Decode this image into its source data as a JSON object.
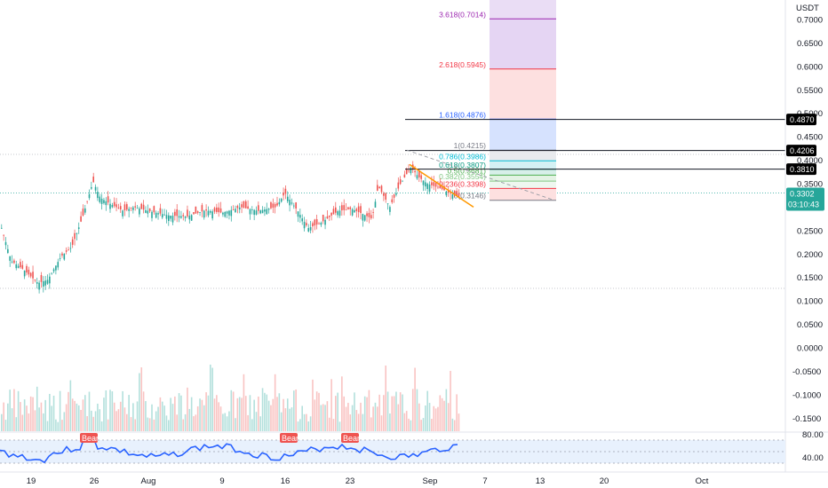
{
  "currency": "USDT",
  "price_axis": {
    "ticks": [
      "0.7000",
      "0.6500",
      "0.6000",
      "0.5500",
      "0.5000",
      "0.4500",
      "0.4000",
      "0.3500",
      "0.3000",
      "0.2500",
      "0.2000",
      "0.1500",
      "0.1000",
      "0.0500",
      "0.0000",
      "-0.0500",
      "-0.1000",
      "-0.1500"
    ],
    "ymin": -0.16,
    "ymax": 0.725
  },
  "price_tags": [
    {
      "value": 0.487,
      "text": "0.4870",
      "bg": "#000000"
    },
    {
      "value": 0.4206,
      "text": "0.4206",
      "bg": "#000000"
    },
    {
      "value": 0.381,
      "text": "0.3810",
      "bg": "#000000"
    }
  ],
  "current_price": {
    "value": 0.3302,
    "text": "0.3302",
    "countdown": "03:10:43",
    "bg": "#26a69a"
  },
  "fib_levels": [
    {
      "ratio": "3.618",
      "price": 0.7014,
      "label": "3.618(0.7014)",
      "color": "#9c27b0"
    },
    {
      "ratio": "2.618",
      "price": 0.5945,
      "label": "2.618(0.5945)",
      "color": "#f23645"
    },
    {
      "ratio": "1.618",
      "price": 0.4876,
      "label": "1.618(0.4876)",
      "color": "#2962ff"
    },
    {
      "ratio": "1",
      "price": 0.4215,
      "label": "1(0.4215)",
      "color": "#787b86"
    },
    {
      "ratio": "0.786",
      "price": 0.3986,
      "label": "0.786(0.3986)",
      "color": "#00bcd4"
    },
    {
      "ratio": "0.618",
      "price": 0.3807,
      "label": "0.618(0.3807)",
      "color": "#089981"
    },
    {
      "ratio": "0.5",
      "price": 0.3681,
      "label": "0.5(0.3681)",
      "color": "#4caf50"
    },
    {
      "ratio": "0.382",
      "price": 0.3554,
      "label": "0.382(0.3554)",
      "color": "#81c784"
    },
    {
      "ratio": "0.236",
      "price": 0.3398,
      "label": "0.236(0.3398)",
      "color": "#f23645"
    },
    {
      "ratio": "0",
      "price": 0.3146,
      "label": "0(0.3146)",
      "color": "#787b86"
    }
  ],
  "rsi_axis": {
    "ticks": [
      "80.00",
      "40.00"
    ]
  },
  "bear_labels": [
    "Bear",
    "Bear",
    "Bear"
  ],
  "time_axis": {
    "labels": [
      "19",
      "26",
      "Aug",
      "9",
      "16",
      "23",
      "Sep",
      "7",
      "13",
      "20",
      "Oct"
    ]
  },
  "colors": {
    "up": "#26a69a",
    "down": "#ef5350",
    "rsi": "#2962ff",
    "trendline": "#ff9800",
    "bear": "#ef5350"
  }
}
